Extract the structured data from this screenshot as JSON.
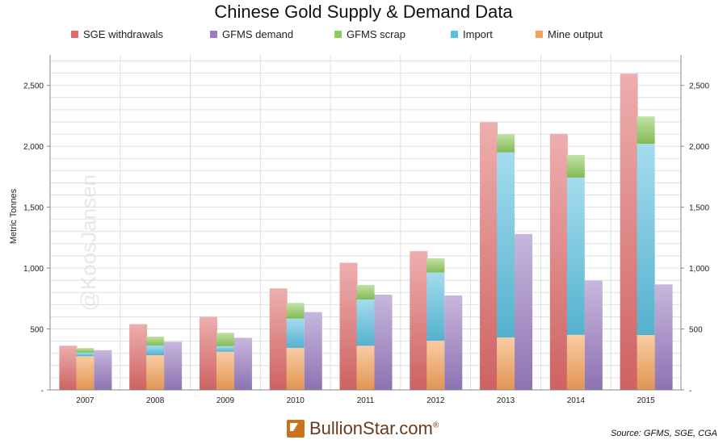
{
  "chart_data": {
    "type": "bar",
    "title": "Chinese Gold Supply & Demand Data",
    "ylabel": "Metric Tonnes",
    "xlabel": "",
    "ylim": [
      0,
      2750
    ],
    "yticks": [
      0,
      500,
      1000,
      1500,
      2000,
      2500
    ],
    "ytick_labels": [
      "-",
      "500",
      "1,000",
      "1,500",
      "2,000",
      "2,500"
    ],
    "grid": true,
    "legend_position": "top",
    "categories": [
      "2007",
      "2008",
      "2009",
      "2010",
      "2011",
      "2012",
      "2013",
      "2014",
      "2015"
    ],
    "series": [
      {
        "name": "SGE withdrawals",
        "color": "#e06b6b",
        "stack": "sge",
        "values": [
          363,
          540,
          600,
          833,
          1044,
          1139,
          2197,
          2102,
          2596
        ]
      },
      {
        "name": "Mine output",
        "color": "#f5a259",
        "stack": "supply",
        "values": [
          276,
          285,
          314,
          345,
          362,
          403,
          430,
          452,
          450
        ]
      },
      {
        "name": "Import",
        "color": "#5bc0e0",
        "stack": "supply",
        "values": [
          30,
          80,
          45,
          240,
          380,
          560,
          1520,
          1290,
          1570
        ]
      },
      {
        "name": "GFMS scrap",
        "color": "#8fca5d",
        "stack": "supply",
        "values": [
          38,
          73,
          110,
          129,
          120,
          117,
          150,
          187,
          225
        ]
      },
      {
        "name": "GFMS demand",
        "color": "#9a7cc2",
        "stack": "demand",
        "values": [
          326,
          395,
          428,
          639,
          782,
          776,
          1280,
          897,
          866
        ]
      }
    ]
  },
  "legend": {
    "items": [
      {
        "label": "SGE withdrawals",
        "color": "#e06b6b"
      },
      {
        "label": "GFMS demand",
        "color": "#9a7cc2"
      },
      {
        "label": "GFMS scrap",
        "color": "#8fca5d"
      },
      {
        "label": "Import",
        "color": "#5bc0e0"
      },
      {
        "label": "Mine output",
        "color": "#f5a259"
      }
    ]
  },
  "watermark": "@KoosJansen",
  "logo": {
    "text": "BullionStar.com",
    "reg": "®"
  },
  "source": "Source: GFMS, SGE, CGA"
}
